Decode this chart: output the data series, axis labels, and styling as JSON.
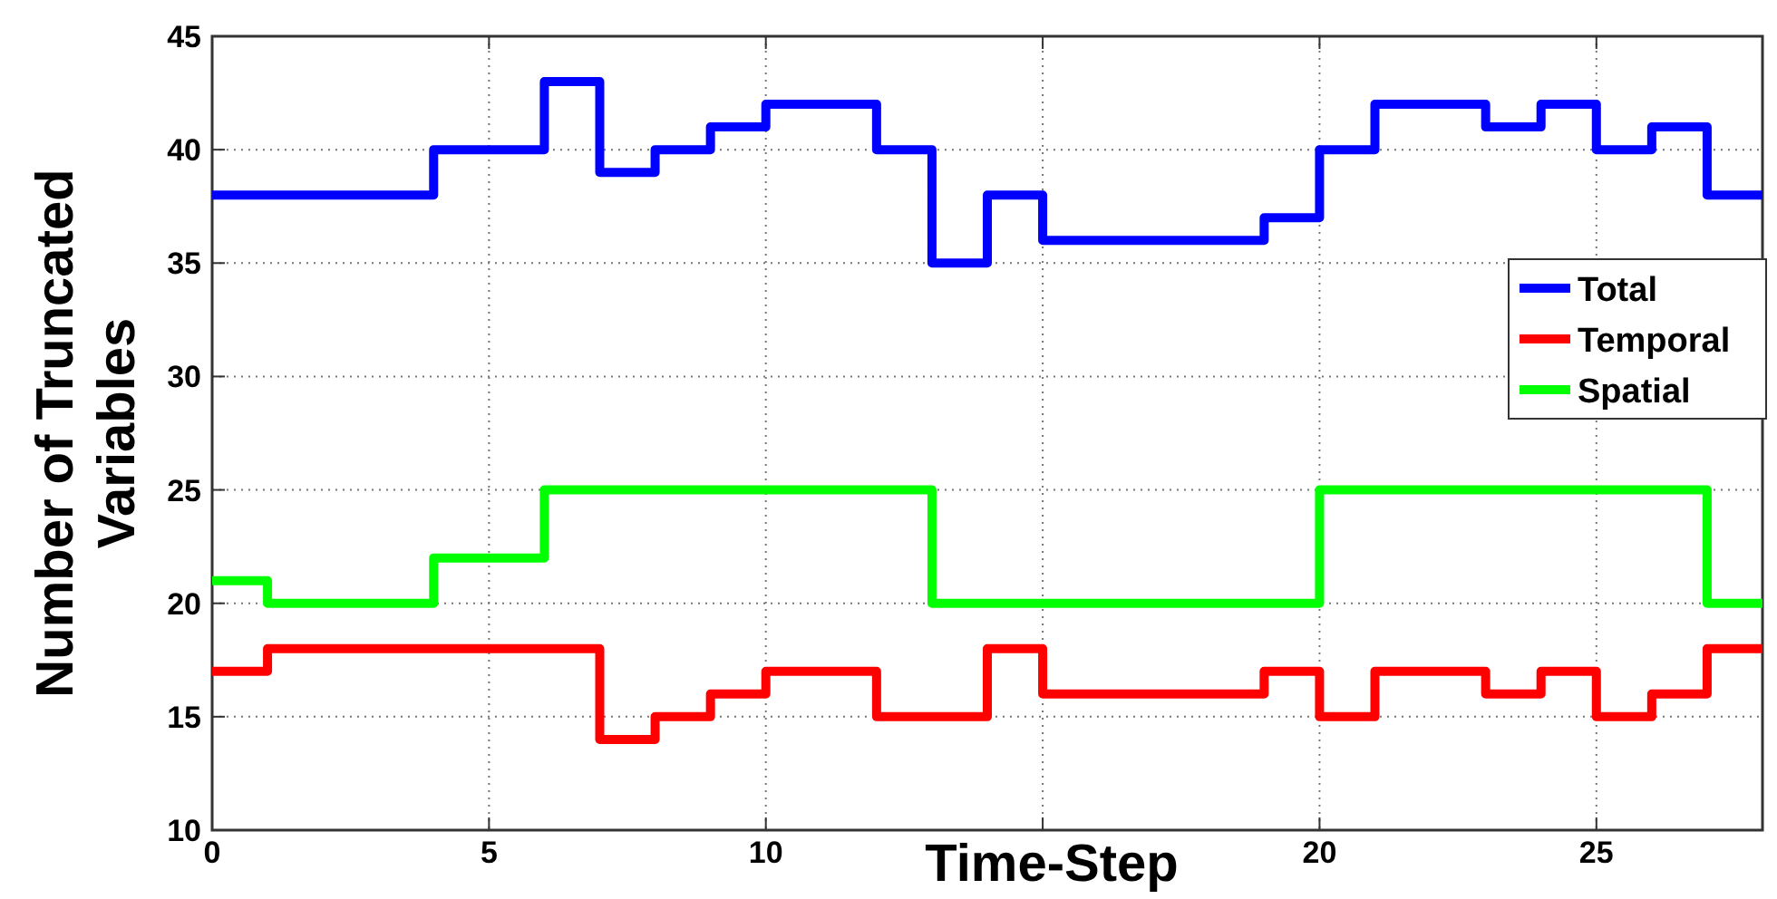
{
  "chart_data": {
    "type": "step",
    "xlabel": "Time-Step",
    "ylabel": "Number of Truncated\nVariables",
    "x": [
      0,
      1,
      2,
      3,
      4,
      5,
      6,
      7,
      8,
      9,
      10,
      11,
      12,
      13,
      14,
      15,
      16,
      17,
      18,
      19,
      20,
      21,
      22,
      23,
      24,
      25,
      26,
      27,
      28
    ],
    "series": [
      {
        "name": "Total",
        "color": "#0000ff",
        "values": [
          38,
          38,
          38,
          38,
          40,
          40,
          43,
          39,
          40,
          41,
          42,
          42,
          40,
          35,
          38,
          36,
          36,
          36,
          36,
          37,
          40,
          42,
          42,
          41,
          42,
          40,
          41,
          38,
          38
        ]
      },
      {
        "name": "Temporal",
        "color": "#ff0000",
        "values": [
          17,
          18,
          18,
          18,
          18,
          18,
          18,
          14,
          15,
          16,
          17,
          17,
          15,
          15,
          18,
          16,
          16,
          16,
          16,
          17,
          15,
          17,
          17,
          16,
          17,
          15,
          16,
          18,
          18
        ]
      },
      {
        "name": "Spatial",
        "color": "#00ff00",
        "values": [
          21,
          20,
          20,
          20,
          22,
          22,
          25,
          25,
          25,
          25,
          25,
          25,
          25,
          20,
          20,
          20,
          20,
          20,
          20,
          20,
          25,
          25,
          25,
          25,
          25,
          25,
          25,
          20,
          20
        ]
      }
    ],
    "xlim": [
      0,
      28
    ],
    "ylim": [
      10,
      45
    ],
    "xticks": [
      0,
      5,
      10,
      {
        "value": 15,
        "label": null
      },
      20,
      25
    ],
    "yticks": [
      10,
      15,
      20,
      25,
      30,
      35,
      40,
      45
    ],
    "grid": true,
    "legend": "right",
    "line_style": "solid",
    "marker": "none"
  }
}
